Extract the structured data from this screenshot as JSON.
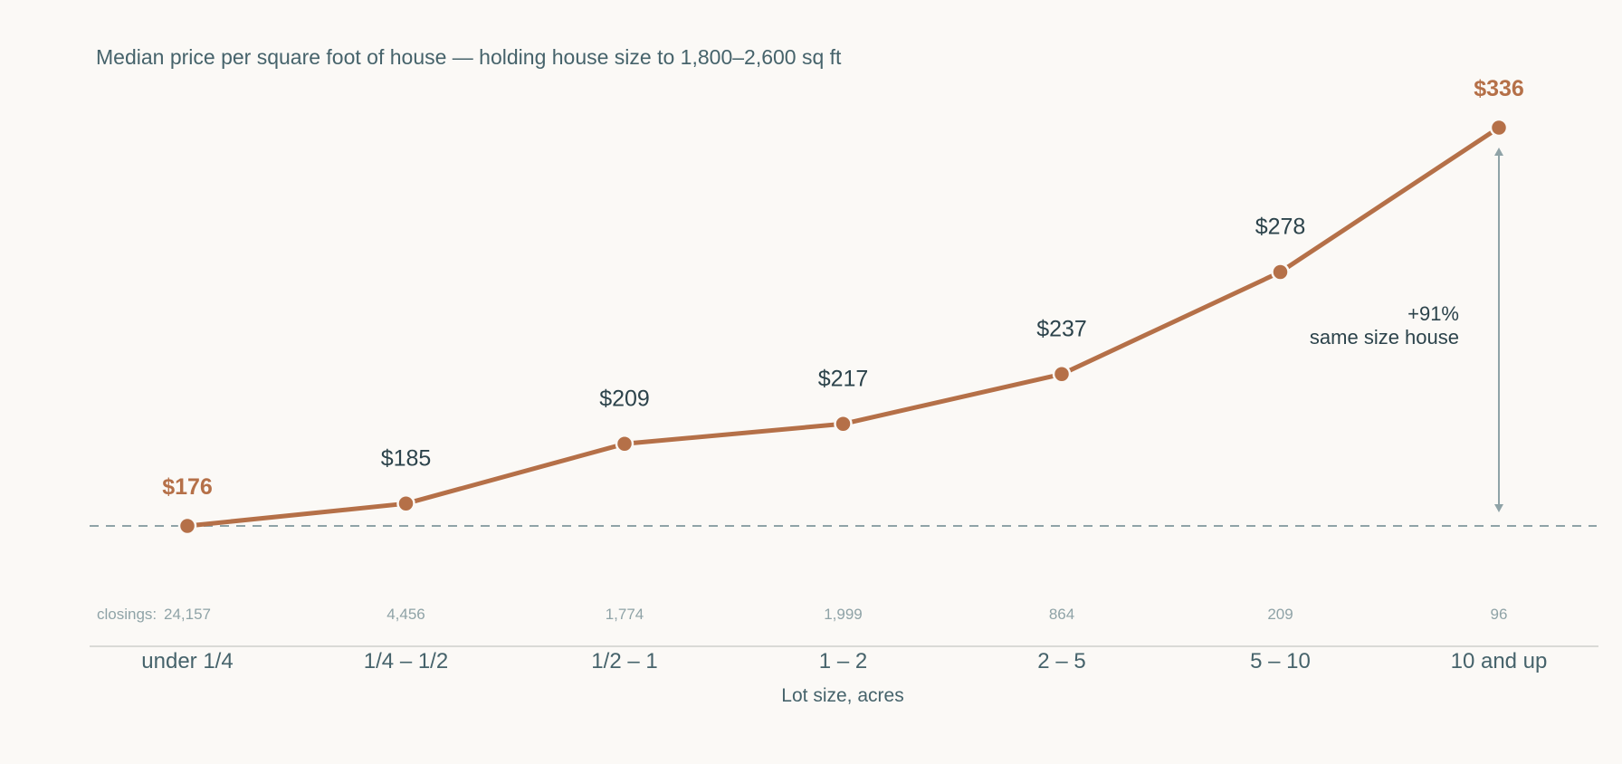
{
  "chart_data": {
    "type": "line",
    "title": "Median price per square foot of house — holding house size to 1,800–2,600 sq ft",
    "xlabel": "Lot size, acres",
    "ylabel": "",
    "categories": [
      "under 1/4",
      "1/4 – 1/2",
      "1/2 – 1",
      "1 – 2",
      "2 – 5",
      "5 – 10",
      "10 and up"
    ],
    "values": [
      176,
      185,
      209,
      217,
      237,
      278,
      336
    ],
    "value_labels": [
      "$176",
      "$185",
      "$209",
      "$217",
      "$237",
      "$278",
      "$336"
    ],
    "highlighted_points": [
      0,
      6
    ],
    "closings_prefix": "closings:",
    "closings": [
      "24,157",
      "4,456",
      "1,774",
      "1,999",
      "864",
      "209",
      "96"
    ],
    "baseline_value": 176,
    "annotation": {
      "line1": "+91%",
      "line2": "same size house"
    },
    "grid": false,
    "colors": {
      "line": "#b57048",
      "highlight_label": "#b57048",
      "label": "#2c434b",
      "muted": "#8fa3a7",
      "background": "#fbf9f6"
    }
  }
}
